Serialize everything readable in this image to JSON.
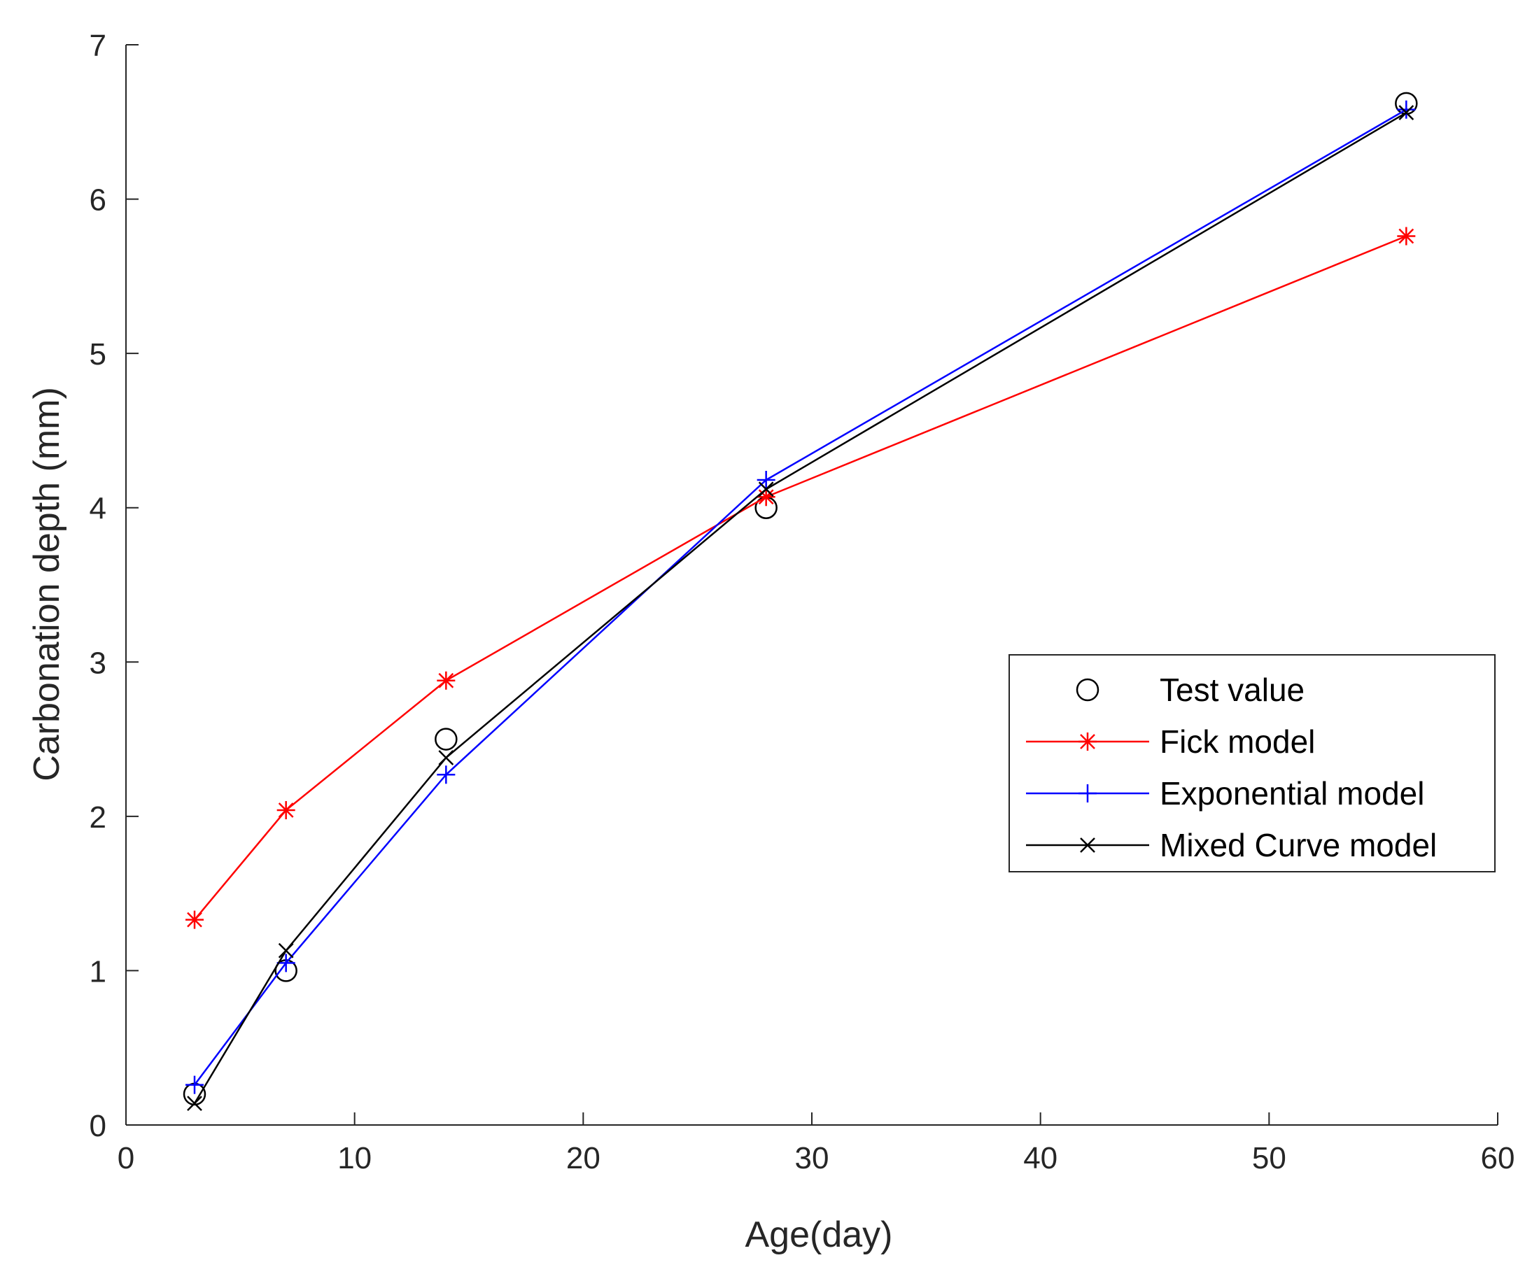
{
  "chart_data": {
    "type": "line",
    "title": "",
    "xlabel": "Age(day)",
    "ylabel": "Carbonation depth (mm)",
    "xlim": [
      0,
      60
    ],
    "ylim": [
      0,
      7
    ],
    "xticks": [
      0,
      10,
      20,
      30,
      40,
      50,
      60
    ],
    "yticks": [
      0,
      1,
      2,
      3,
      4,
      5,
      6,
      7
    ],
    "xtick_labels": [
      "0",
      "10",
      "20",
      "30",
      "40",
      "50",
      "60"
    ],
    "ytick_labels": [
      "0",
      "1",
      "2",
      "3",
      "4",
      "5",
      "6",
      "7"
    ],
    "grid": false,
    "legend_position": "right",
    "x": [
      3,
      7,
      14,
      28,
      56
    ],
    "series": [
      {
        "name": "Test value",
        "values": [
          0.2,
          1.0,
          2.5,
          4.0,
          6.62
        ],
        "color": "#000000",
        "marker": "circle",
        "line": false
      },
      {
        "name": "Fick model",
        "values": [
          1.33,
          2.04,
          2.88,
          4.07,
          5.76
        ],
        "color": "#ff0000",
        "marker": "asterisk",
        "line": true
      },
      {
        "name": "Exponential model",
        "values": [
          0.26,
          1.05,
          2.27,
          4.18,
          6.58
        ],
        "color": "#0000ff",
        "marker": "plus",
        "line": true
      },
      {
        "name": "Mixed Curve model",
        "values": [
          0.14,
          1.13,
          2.38,
          4.12,
          6.56
        ],
        "color": "#000000",
        "marker": "cross",
        "line": true
      }
    ]
  }
}
